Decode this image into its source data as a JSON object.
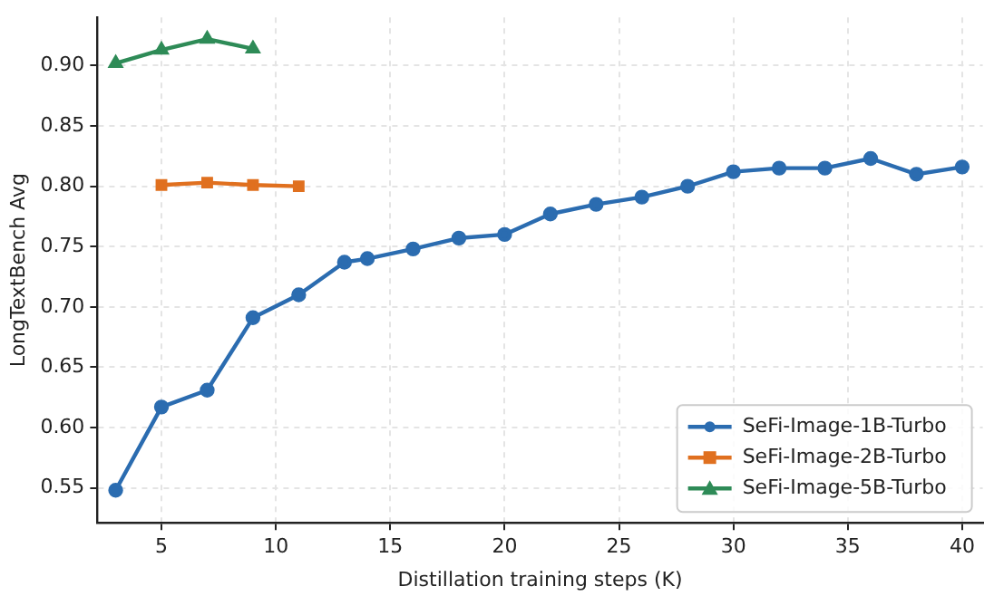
{
  "chart_data": {
    "type": "line",
    "xlabel": "Distillation training steps (K)",
    "ylabel": "LongTextBench Avg",
    "xlim": [
      2.2,
      40.9
    ],
    "xticks": [
      5,
      10,
      15,
      20,
      25,
      30,
      35,
      40
    ],
    "ylim": [
      0.521,
      0.94
    ],
    "yticks": [
      0.55,
      {
        "value": 0.6,
        "label": "0.60"
      },
      0.65,
      {
        "value": 0.7,
        "label": "0.70"
      },
      0.75,
      {
        "value": 0.8,
        "label": "0.80"
      },
      0.85,
      {
        "value": 0.9,
        "label": "0.90"
      }
    ],
    "grid": true,
    "legend": "bottom right",
    "series": [
      {
        "name": "SeFi-Image-1B-Turbo",
        "color": "#2b6cb0",
        "marker": "circle",
        "x": [
          3,
          5,
          7,
          9,
          11,
          13,
          14,
          16,
          18,
          20,
          22,
          24,
          26,
          28,
          30,
          32,
          34,
          36,
          38,
          40
        ],
        "values": [
          0.548,
          0.617,
          0.631,
          0.691,
          0.71,
          0.737,
          0.74,
          0.748,
          0.757,
          0.76,
          0.777,
          0.785,
          0.791,
          0.8,
          0.812,
          0.815,
          0.815,
          0.823,
          0.81,
          0.816
        ]
      },
      {
        "name": "SeFi-Image-2B-Turbo",
        "color": "#e0701f",
        "marker": "square",
        "x": [
          5,
          7,
          9,
          11
        ],
        "values": [
          0.801,
          0.803,
          0.801,
          0.8
        ]
      },
      {
        "name": "SeFi-Image-5B-Turbo",
        "color": "#2e8b57",
        "marker": "triangle",
        "x": [
          3,
          5,
          7,
          9
        ],
        "values": [
          0.902,
          0.913,
          0.922,
          0.914
        ]
      }
    ]
  }
}
